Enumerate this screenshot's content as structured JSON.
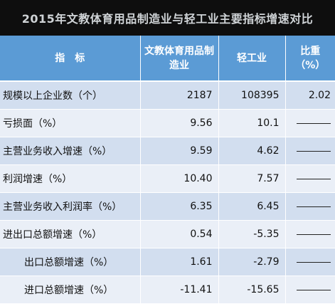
{
  "title": "2015年文教体育用品制造业与轻工业主要指标增速对比",
  "headers": {
    "indicator": "指　标",
    "col_a": "文教体育用品制造业",
    "col_b": "轻工业",
    "col_c": "比重（%）"
  },
  "rows": [
    {
      "label": "规模以上企业数（个）",
      "a": "2187",
      "b": "108395",
      "ratio": "2.02",
      "sub": false
    },
    {
      "label": "亏损面（%）",
      "a": "9.56",
      "b": "10.1",
      "ratio": "",
      "sub": false
    },
    {
      "label": "主营业务收入增速（%）",
      "a": "9.59",
      "b": "4.62",
      "ratio": "",
      "sub": false
    },
    {
      "label": "利润增速（%）",
      "a": "10.40",
      "b": "7.57",
      "ratio": "",
      "sub": false
    },
    {
      "label": "主营业务收入利润率（%）",
      "a": "6.35",
      "b": "6.45",
      "ratio": "",
      "sub": false
    },
    {
      "label": "进出口总额增速（%）",
      "a": "0.54",
      "b": "-5.35",
      "ratio": "",
      "sub": false
    },
    {
      "label": "出口总额增速（%）",
      "a": "1.61",
      "b": "-2.79",
      "ratio": "",
      "sub": true
    },
    {
      "label": "进口总额增速（%）",
      "a": "-11.41",
      "b": "-15.65",
      "ratio": "",
      "sub": true
    }
  ],
  "colors": {
    "header_bg": "#5b9bd5",
    "row_dark": "#d2deef",
    "row_light": "#eaeff7",
    "title_bg": "#0e0e0e"
  }
}
